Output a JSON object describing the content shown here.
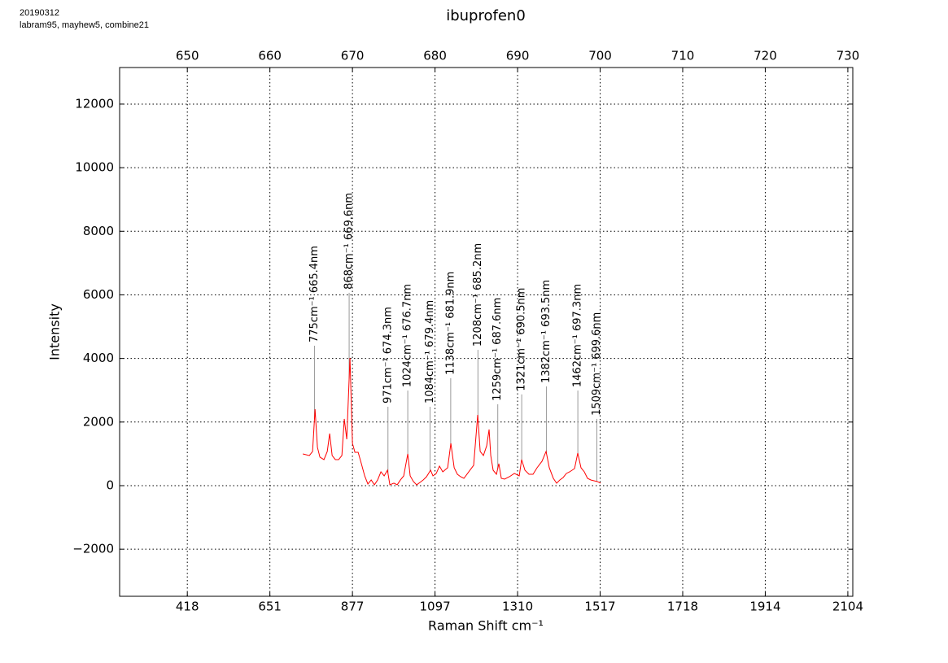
{
  "chart_data": {
    "type": "line",
    "title": "ibuprofen0",
    "date_note": "20190312",
    "source_note": "labram95, mayhew5, combine21",
    "xlabel": "Raman Shift cm⁻¹",
    "ylabel": "Intensity",
    "color": "#ff0000",
    "grid": true,
    "xlim": [
      641.8,
      730.6
    ],
    "ylim": [
      -3480,
      13150
    ],
    "xticks": [
      650,
      660,
      670,
      680,
      690,
      700,
      710,
      720,
      730
    ],
    "x2ticks": [
      {
        "value": 650,
        "label": "418"
      },
      {
        "value": 660,
        "label": "651"
      },
      {
        "value": 670,
        "label": "877"
      },
      {
        "value": 680,
        "label": "1097"
      },
      {
        "value": 690,
        "label": "1310"
      },
      {
        "value": 700,
        "label": "1517"
      },
      {
        "value": 710,
        "label": "1718"
      },
      {
        "value": 720,
        "label": "1914"
      },
      {
        "value": 730,
        "label": "2104"
      }
    ],
    "yticks": [
      {
        "value": -2000,
        "label": "−2000"
      },
      0,
      2000,
      4000,
      6000,
      8000,
      10000,
      12000
    ],
    "x": [
      663.99,
      664.78,
      665.17,
      665.47,
      665.76,
      666.06,
      666.55,
      666.95,
      667.24,
      667.54,
      667.93,
      668.33,
      668.72,
      669.01,
      669.31,
      669.7,
      670.0,
      670.3,
      670.69,
      671.08,
      671.48,
      671.87,
      672.27,
      672.66,
      673.05,
      673.45,
      673.84,
      674.24,
      674.53,
      675.02,
      675.42,
      675.81,
      676.21,
      676.7,
      676.99,
      677.39,
      677.78,
      678.18,
      678.57,
      678.97,
      679.46,
      679.75,
      680.15,
      680.54,
      680.94,
      681.53,
      681.92,
      682.32,
      682.71,
      683.1,
      683.5,
      684.09,
      684.68,
      685.17,
      685.47,
      685.86,
      686.26,
      686.55,
      686.75,
      687.04,
      687.44,
      687.73,
      688.03,
      688.42,
      689.01,
      689.61,
      690.2,
      690.49,
      690.89,
      691.38,
      691.87,
      692.36,
      692.96,
      693.45,
      693.84,
      694.33,
      694.73,
      695.12,
      695.52,
      695.91,
      696.31,
      696.9,
      697.29,
      697.68,
      698.08,
      698.47,
      698.87,
      699.26,
      699.66,
      700.05
    ],
    "values": [
      998,
      947,
      1075,
      2405,
      1203,
      896,
      819,
      1075,
      1638,
      947,
      819,
      819,
      947,
      2098,
      1459,
      4017,
      1331,
      1049,
      1049,
      691,
      307,
      51,
      179,
      26,
      179,
      435,
      307,
      486,
      26,
      77,
      26,
      179,
      307,
      998,
      307,
      128,
      26,
      102,
      179,
      281,
      486,
      307,
      384,
      614,
      435,
      563,
      1331,
      563,
      358,
      281,
      230,
      435,
      640,
      2226,
      1075,
      947,
      1254,
      1766,
      947,
      486,
      358,
      691,
      230,
      205,
      281,
      384,
      307,
      819,
      486,
      358,
      358,
      563,
      768,
      1075,
      563,
      230,
      77,
      179,
      256,
      384,
      435,
      537,
      1024,
      563,
      435,
      230,
      179,
      154,
      128,
      77
    ],
    "annotations": [
      {
        "x": 665.4,
        "y": 4400,
        "text": "775cm⁻¹ 665.4nm"
      },
      {
        "x": 669.6,
        "y": 6065,
        "text": "868cm⁻¹ 669.6nm"
      },
      {
        "x": 674.3,
        "y": 2480,
        "text": "971cm⁻¹ 674.3nm"
      },
      {
        "x": 676.7,
        "y": 2990,
        "text": "1024cm⁻¹ 676.7nm"
      },
      {
        "x": 679.4,
        "y": 2480,
        "text": "1084cm⁻¹ 679.4nm"
      },
      {
        "x": 681.9,
        "y": 3380,
        "text": "1138cm⁻¹ 681.9nm"
      },
      {
        "x": 685.2,
        "y": 4270,
        "text": "1208cm⁻¹ 685.2nm"
      },
      {
        "x": 687.6,
        "y": 2560,
        "text": "1259cm⁻¹ 687.6nm"
      },
      {
        "x": 690.5,
        "y": 2870,
        "text": "1321cm⁻¹ 690.5nm"
      },
      {
        "x": 693.5,
        "y": 3120,
        "text": "1382cm⁻¹ 693.5nm"
      },
      {
        "x": 697.3,
        "y": 2990,
        "text": "1462cm⁻¹ 697.3nm"
      },
      {
        "x": 699.6,
        "y": 2100,
        "text": "1509cm⁻¹ 699.6nm"
      }
    ]
  }
}
